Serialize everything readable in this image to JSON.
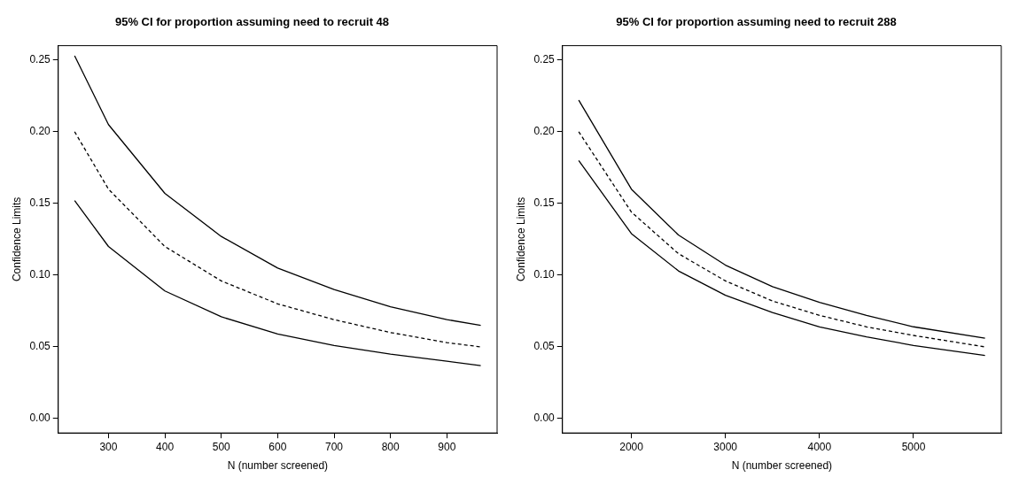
{
  "chart_data": [
    {
      "type": "line",
      "title": "95% CI for proportion assuming need to recruit 48",
      "xlabel": "N (number screened)",
      "ylabel": "Confidence Limits",
      "x": [
        240,
        300,
        400,
        500,
        600,
        700,
        800,
        900,
        960
      ],
      "series": [
        {
          "color": "#000000",
          "line_style": "solid",
          "values": [
            0.253,
            0.205,
            0.157,
            0.127,
            0.105,
            0.09,
            0.078,
            0.069,
            0.065
          ]
        },
        {
          "color": "#000000",
          "line_style": "dashed",
          "values": [
            0.2,
            0.16,
            0.12,
            0.096,
            0.08,
            0.069,
            0.06,
            0.053,
            0.05
          ]
        },
        {
          "color": "#000000",
          "line_style": "solid",
          "values": [
            0.152,
            0.12,
            0.089,
            0.071,
            0.059,
            0.051,
            0.045,
            0.04,
            0.037
          ]
        }
      ],
      "xlim": [
        211,
        989
      ],
      "xticks": [
        300,
        400,
        500,
        600,
        700,
        800,
        900
      ],
      "ylim": [
        -0.01,
        0.26
      ],
      "yticks": [
        {
          "value": 0,
          "label": "0.00"
        },
        0.05,
        {
          "value": 0.1,
          "label": "0.10"
        },
        0.15,
        {
          "value": 0.2,
          "label": "0.20"
        },
        0.25
      ],
      "grid": false,
      "legend": false,
      "marker": "none"
    },
    {
      "type": "line",
      "title": "95% CI for proportion assuming need to recruit 288",
      "xlabel": "N (number screened)",
      "ylabel": "Confidence Limits",
      "x": [
        1440,
        2000,
        2500,
        3000,
        3500,
        4000,
        4500,
        5000,
        5760
      ],
      "series": [
        {
          "color": "#000000",
          "line_style": "solid",
          "values": [
            0.222,
            0.16,
            0.128,
            0.107,
            0.092,
            0.081,
            0.072,
            0.064,
            0.056
          ]
        },
        {
          "color": "#000000",
          "line_style": "dashed",
          "values": [
            0.2,
            0.144,
            0.115,
            0.096,
            0.082,
            0.072,
            0.064,
            0.058,
            0.05
          ]
        },
        {
          "color": "#000000",
          "line_style": "solid",
          "values": [
            0.18,
            0.129,
            0.103,
            0.086,
            0.074,
            0.064,
            0.057,
            0.051,
            0.044
          ]
        }
      ],
      "xlim": [
        1267,
        5933
      ],
      "xticks": [
        2000,
        3000,
        4000,
        5000
      ],
      "ylim": [
        -0.01,
        0.26
      ],
      "yticks": [
        {
          "value": 0,
          "label": "0.00"
        },
        0.05,
        {
          "value": 0.1,
          "label": "0.10"
        },
        0.15,
        {
          "value": 0.2,
          "label": "0.20"
        },
        0.25
      ],
      "grid": false,
      "legend": false,
      "marker": "none"
    }
  ]
}
